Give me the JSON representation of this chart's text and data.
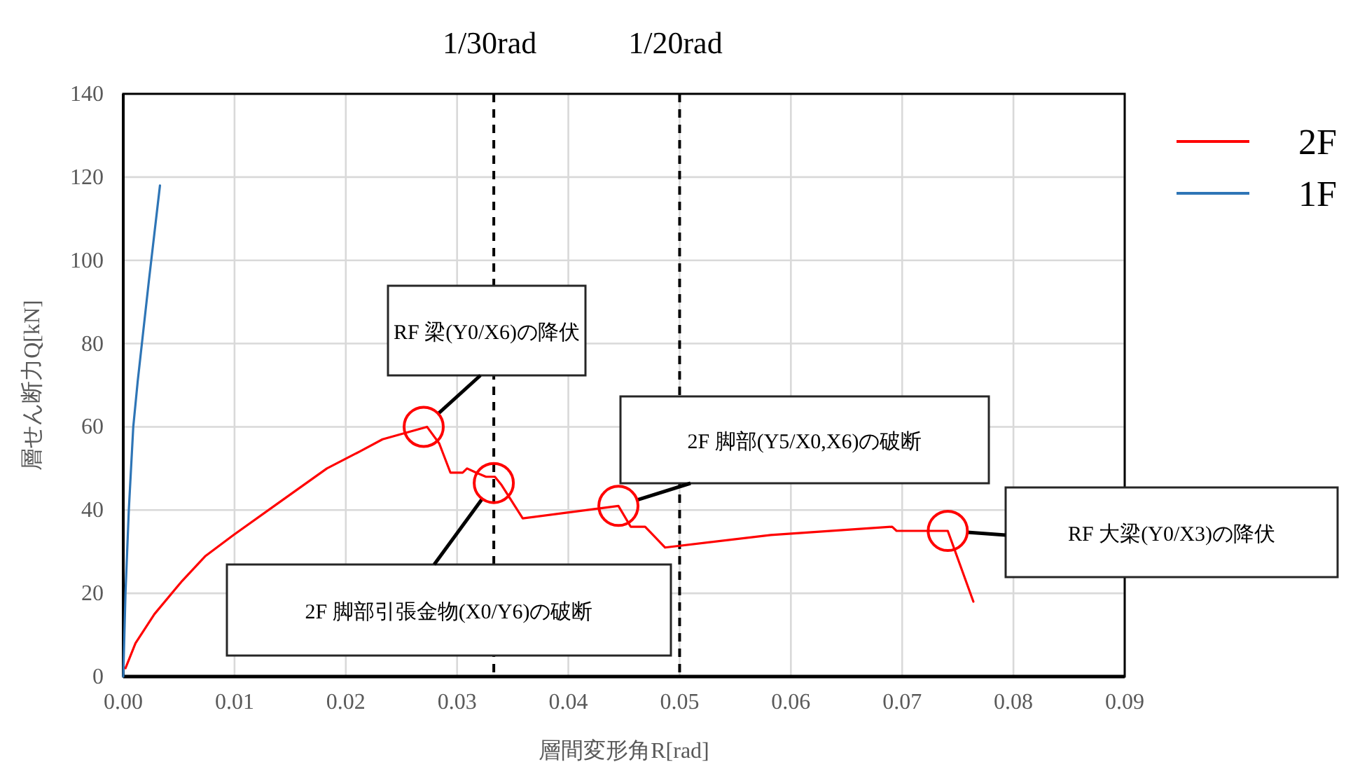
{
  "chart_data": {
    "type": "line",
    "xlabel": "層間変形角R[rad]",
    "ylabel": "層せん断力Q[kN]",
    "xlim": [
      0,
      0.09
    ],
    "xticks": [
      {
        "value": 0,
        "label": "0.00"
      },
      {
        "value": 0.01,
        "label": "0.01"
      },
      {
        "value": 0.02,
        "label": "0.02"
      },
      {
        "value": 0.03,
        "label": "0.03"
      },
      {
        "value": 0.04,
        "label": "0.04"
      },
      {
        "value": 0.05,
        "label": "0.05"
      },
      {
        "value": 0.06,
        "label": "0.06"
      },
      {
        "value": 0.07,
        "label": "0.07"
      },
      {
        "value": 0.08,
        "label": "0.08"
      },
      {
        "value": 0.09,
        "label": "0.09"
      }
    ],
    "ylim": [
      0,
      140
    ],
    "yticks": [
      0,
      20,
      40,
      60,
      80,
      100,
      120,
      140
    ],
    "grid": true,
    "legend": "top right",
    "line_style": "solid",
    "marker": "none",
    "series": [
      {
        "name": "2F",
        "color": "#ff0000",
        "x": [
          0.0002,
          0.0011,
          0.0028,
          0.0053,
          0.0074,
          0.0099,
          0.0141,
          0.0183,
          0.0212,
          0.0233,
          0.0273,
          0.0284,
          0.0294,
          0.0305,
          0.0309,
          0.0317,
          0.0326,
          0.0334,
          0.034,
          0.0359,
          0.0445,
          0.0456,
          0.0462,
          0.0469,
          0.0487,
          0.0582,
          0.0691,
          0.0695,
          0.0741,
          0.0764
        ],
        "values": [
          2,
          8,
          15,
          23,
          29,
          34,
          42,
          50,
          54,
          57,
          60,
          56,
          49,
          49,
          50,
          49,
          48,
          48,
          46,
          38,
          41,
          36,
          36,
          36,
          31,
          34,
          36,
          35,
          35,
          18
        ]
      },
      {
        "name": "1F",
        "color": "#2e75b6",
        "x": [
          0,
          0.0002,
          0.0005,
          0.0009,
          0.0013,
          0.0023,
          0.0033
        ],
        "values": [
          0,
          20,
          40,
          60,
          71,
          95,
          118
        ]
      }
    ],
    "ref_lines": [
      {
        "axis": "x",
        "value": 0.0333,
        "label": "1/30rad",
        "color": "#000000",
        "line_style": "dashed"
      },
      {
        "axis": "x",
        "value": 0.05,
        "label": "1/20rad",
        "color": "#000000",
        "line_style": "dashed"
      }
    ],
    "annotations": [
      {
        "text": "RF 梁(Y0/X6)の降伏",
        "x": 0.027,
        "y": 60
      },
      {
        "text": "2F 脚部引張金物(X0/Y6)の破断",
        "x": 0.0333,
        "y": 46.5
      },
      {
        "text": "2F 脚部(Y5/X0,X6)の破断",
        "x": 0.0445,
        "y": 41
      },
      {
        "text": "RF 大梁(Y0/X3)の降伏",
        "x": 0.0741,
        "y": 35
      }
    ]
  }
}
